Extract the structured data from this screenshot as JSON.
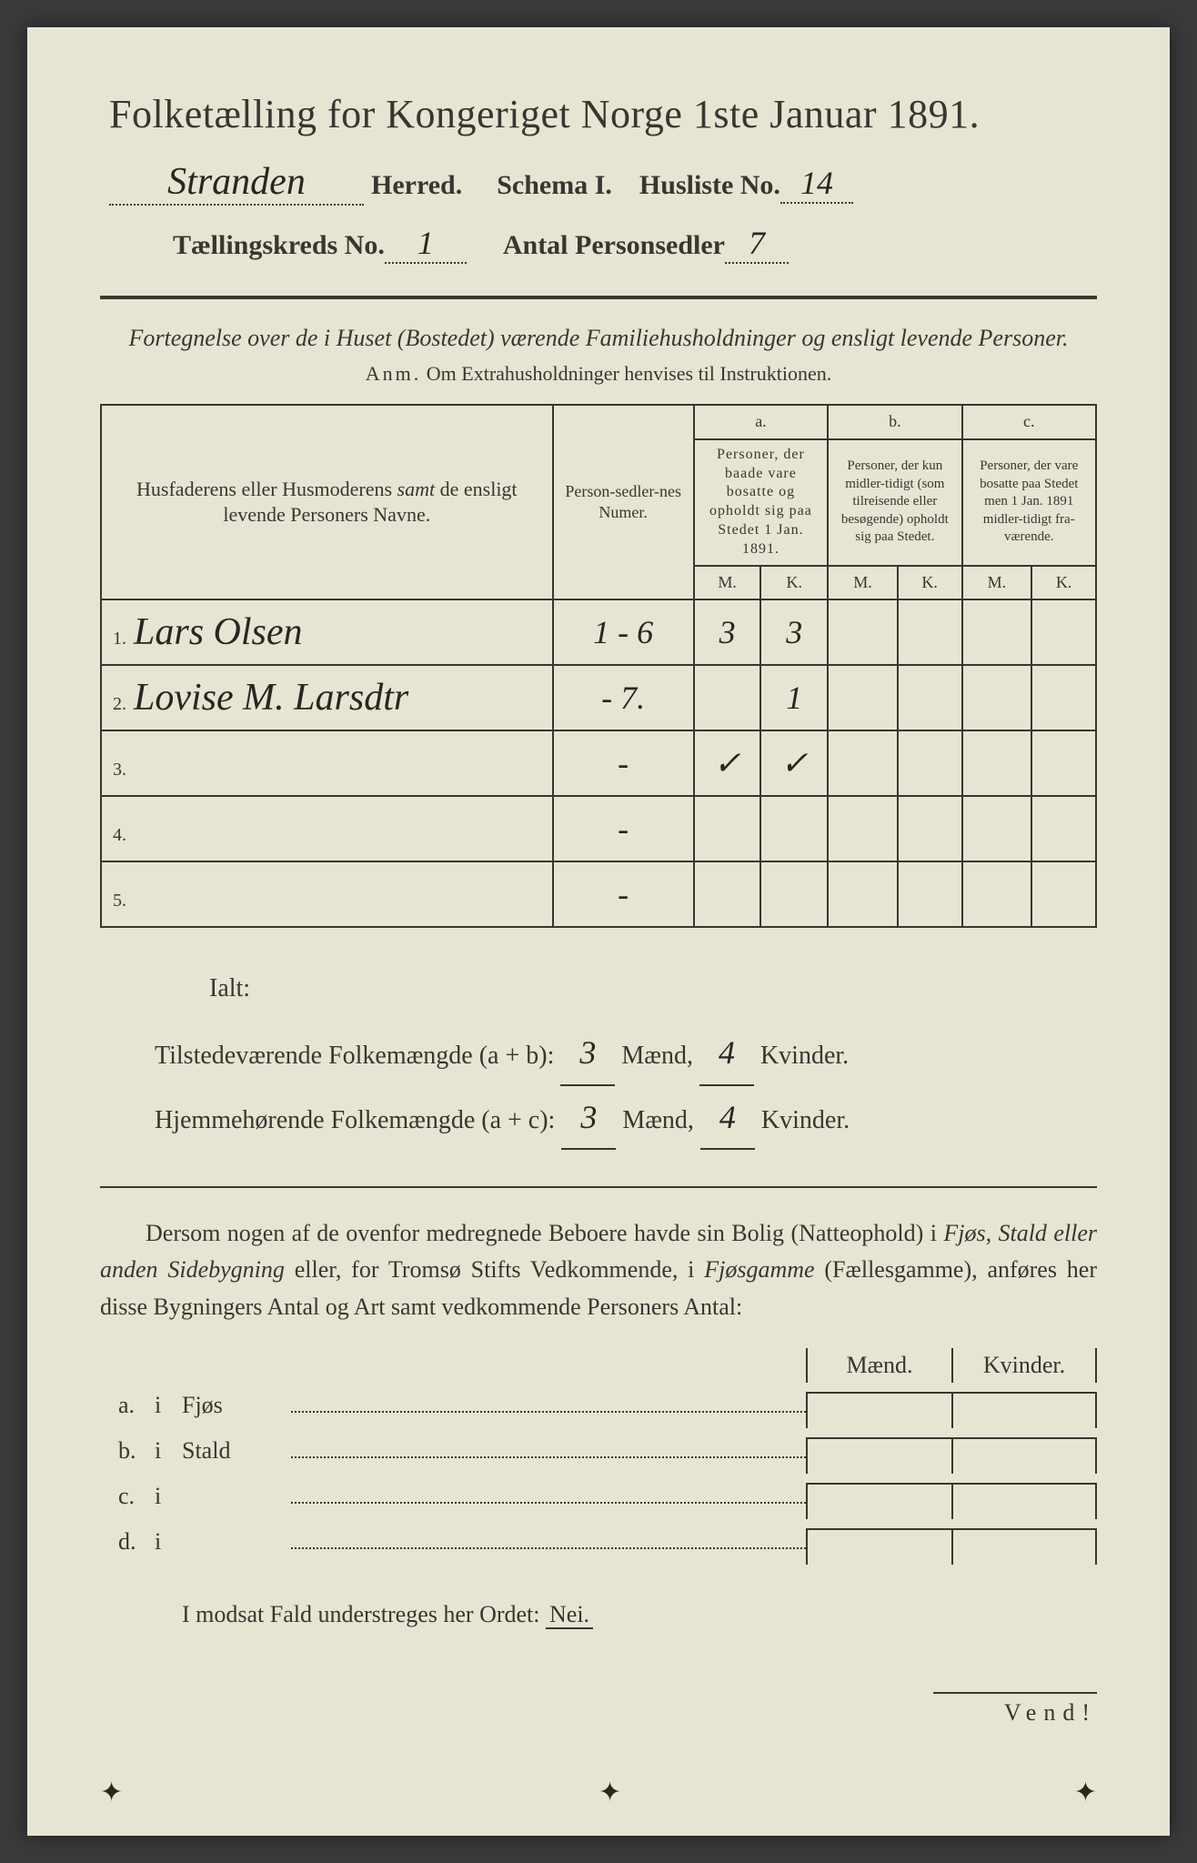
{
  "title": "Folketælling for Kongeriget Norge 1ste Januar 1891.",
  "header": {
    "herred_value": "Stranden",
    "herred_label": "Herred.",
    "schema_label": "Schema I.",
    "husliste_label": "Husliste No.",
    "husliste_value": "14",
    "kreds_label": "Tællingskreds No.",
    "kreds_value": "1",
    "antal_label": "Antal Personsedler",
    "antal_value": "7"
  },
  "subtitle": "Fortegnelse over de i Huset (Bostedet) værende Familiehusholdninger og ensligt levende Personer.",
  "anm_label": "Anm.",
  "anm_text": "Om Extrahusholdninger henvises til Instruktionen.",
  "table": {
    "col_name": "Husfaderens eller Husmoderens samt de ensligt levende Personers Navne.",
    "col_num": "Person-sedler-nes Numer.",
    "col_a_label": "a.",
    "col_a": "Personer, der baade vare bosatte og opholdt sig paa Stedet 1 Jan. 1891.",
    "col_b_label": "b.",
    "col_b": "Personer, der kun midlertidigt (som tilreisende eller besøgende) opholdt sig paa Stedet.",
    "col_c_label": "c.",
    "col_c": "Personer, der vare bosatte paa Stedet men 1 Jan. 1891 midlertidigt fraværende.",
    "m": "M.",
    "k": "K.",
    "rows": [
      {
        "n": "1.",
        "name": "Lars Olsen",
        "num": "1 - 6",
        "am": "3",
        "ak": "3",
        "bm": "",
        "bk": "",
        "cm": "",
        "ck": ""
      },
      {
        "n": "2.",
        "name": "Lovise M. Larsdtr",
        "num": "- 7.",
        "am": "",
        "ak": "1",
        "bm": "",
        "bk": "",
        "cm": "",
        "ck": ""
      },
      {
        "n": "3.",
        "name": "",
        "num": "-",
        "am": "✓",
        "ak": "✓",
        "bm": "",
        "bk": "",
        "cm": "",
        "ck": ""
      },
      {
        "n": "4.",
        "name": "",
        "num": "-",
        "am": "",
        "ak": "",
        "bm": "",
        "bk": "",
        "cm": "",
        "ck": ""
      },
      {
        "n": "5.",
        "name": "",
        "num": "-",
        "am": "",
        "ak": "",
        "bm": "",
        "bk": "",
        "cm": "",
        "ck": ""
      }
    ]
  },
  "totals": {
    "ialt": "Ialt:",
    "line1_label": "Tilstedeværende Folkemængde (a + b):",
    "line2_label": "Hjemmehørende Folkemængde (a + c):",
    "maend": "Mænd,",
    "kvinder": "Kvinder.",
    "v1m": "3",
    "v1k": "4",
    "v2m": "3",
    "v2k": "4"
  },
  "paragraph": {
    "p1": "Dersom nogen af de ovenfor medregnede Beboere havde sin Bolig (Natteophold) i ",
    "p2": "Fjøs, Stald eller anden Sidebygning",
    "p3": " eller, for Tromsø Stifts Vedkommende, i ",
    "p4": "Fjøsgamme",
    "p5": " (Fællesgamme), anføres her disse Bygningers Antal og Art samt vedkommende Personers Antal:"
  },
  "sideb": {
    "maend": "Mænd.",
    "kvinder": "Kvinder.",
    "rows": [
      {
        "l": "a.",
        "i": "i",
        "name": "Fjøs"
      },
      {
        "l": "b.",
        "i": "i",
        "name": "Stald"
      },
      {
        "l": "c.",
        "i": "i",
        "name": ""
      },
      {
        "l": "d.",
        "i": "i",
        "name": ""
      }
    ]
  },
  "nei_line": "I modsat Fald understreges her Ordet:",
  "nei": "Nei.",
  "vend": "Vend!"
}
